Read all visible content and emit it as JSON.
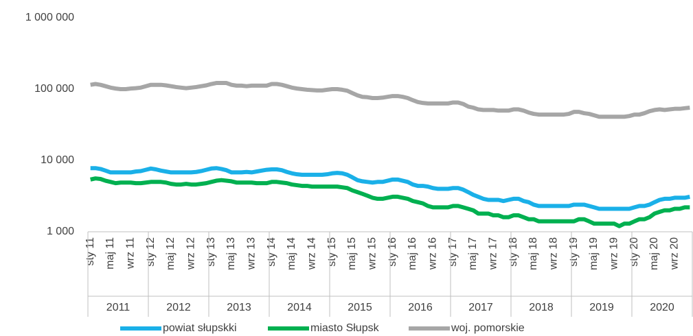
{
  "chart_data": {
    "type": "line",
    "log_scale": true,
    "grid": false,
    "legend": "bottom",
    "ylim": [
      1000,
      1000000
    ],
    "yticks": [
      {
        "value": 1000,
        "label": "1 000"
      },
      {
        "value": 10000,
        "label": "10 000"
      },
      {
        "value": 100000,
        "label": "100 000"
      },
      {
        "value": 1000000,
        "label": "1 000 000"
      }
    ],
    "groups": [
      "2011",
      "2012",
      "2013",
      "2014",
      "2015",
      "2016",
      "2017",
      "2018",
      "2019",
      "2020"
    ],
    "categories": [
      "sty 11",
      null,
      null,
      null,
      "maj 11",
      null,
      null,
      null,
      "wrz 11",
      null,
      null,
      null,
      "sty 12",
      null,
      null,
      null,
      "maj 12",
      null,
      null,
      null,
      "wrz 12",
      null,
      null,
      null,
      "sty 13",
      null,
      null,
      null,
      "maj 13",
      null,
      null,
      null,
      "wrz 13",
      null,
      null,
      null,
      "sty 14",
      null,
      null,
      null,
      "maj 14",
      null,
      null,
      null,
      "wrz 14",
      null,
      null,
      null,
      "sty 15",
      null,
      null,
      null,
      "maj 15",
      null,
      null,
      null,
      "wrz 15",
      null,
      null,
      null,
      "sty 16",
      null,
      null,
      null,
      "maj 16",
      null,
      null,
      null,
      "wrz 16",
      null,
      null,
      null,
      "sty 17",
      null,
      null,
      null,
      "maj 17",
      null,
      null,
      null,
      "wrz 17",
      null,
      null,
      null,
      "sty 18",
      null,
      null,
      null,
      "maj 18",
      null,
      null,
      null,
      "wrz 18",
      null,
      null,
      null,
      "sty 19",
      null,
      null,
      null,
      "maj 19",
      null,
      null,
      null,
      "wrz 19",
      null,
      null,
      null,
      "sty 20",
      null,
      null,
      null,
      "maj 20",
      null,
      null,
      null,
      "wrz 20",
      null,
      null,
      null
    ],
    "series": [
      {
        "name": "powiat słupskki",
        "color": "#1ab0e8",
        "values": [
          7800,
          7800,
          7600,
          7200,
          6800,
          6800,
          6800,
          6800,
          6800,
          7000,
          7100,
          7400,
          7700,
          7500,
          7200,
          7000,
          6800,
          6800,
          6800,
          6800,
          6800,
          6900,
          7100,
          7400,
          7700,
          7800,
          7600,
          7300,
          6800,
          6800,
          6800,
          6900,
          6800,
          7000,
          7200,
          7400,
          7500,
          7500,
          7300,
          6900,
          6600,
          6400,
          6300,
          6300,
          6300,
          6300,
          6300,
          6400,
          6600,
          6700,
          6600,
          6300,
          5800,
          5300,
          5100,
          5000,
          4900,
          5000,
          5000,
          5200,
          5400,
          5400,
          5200,
          5000,
          4600,
          4400,
          4400,
          4300,
          4100,
          4000,
          4000,
          4000,
          4100,
          4100,
          3900,
          3600,
          3300,
          3100,
          2900,
          2800,
          2800,
          2800,
          2700,
          2800,
          2900,
          2900,
          2700,
          2600,
          2400,
          2300,
          2300,
          2300,
          2300,
          2300,
          2300,
          2300,
          2400,
          2400,
          2400,
          2300,
          2200,
          2100,
          2100,
          2100,
          2100,
          2100,
          2100,
          2100,
          2200,
          2300,
          2300,
          2400,
          2600,
          2800,
          2900,
          2900,
          3000,
          3000,
          3000,
          3100
        ]
      },
      {
        "name": "miasto Słupsk",
        "color": "#00b050",
        "values": [
          5400,
          5600,
          5500,
          5200,
          5000,
          4800,
          4900,
          4900,
          4900,
          4800,
          4800,
          4900,
          5000,
          5000,
          5000,
          4900,
          4700,
          4600,
          4600,
          4700,
          4600,
          4600,
          4700,
          4800,
          5000,
          5200,
          5300,
          5200,
          5100,
          4900,
          4900,
          4900,
          4900,
          4800,
          4800,
          4800,
          5000,
          5000,
          4900,
          4800,
          4600,
          4500,
          4400,
          4400,
          4300,
          4300,
          4300,
          4300,
          4300,
          4300,
          4200,
          4100,
          3800,
          3600,
          3400,
          3200,
          3000,
          2900,
          2900,
          3000,
          3100,
          3100,
          3000,
          2900,
          2700,
          2600,
          2500,
          2300,
          2200,
          2200,
          2200,
          2200,
          2300,
          2300,
          2200,
          2100,
          2000,
          1800,
          1800,
          1800,
          1700,
          1700,
          1600,
          1600,
          1700,
          1700,
          1600,
          1500,
          1500,
          1400,
          1400,
          1400,
          1400,
          1400,
          1400,
          1400,
          1400,
          1500,
          1500,
          1400,
          1300,
          1300,
          1300,
          1300,
          1300,
          1200,
          1300,
          1300,
          1400,
          1500,
          1500,
          1600,
          1800,
          1900,
          2000,
          2000,
          2100,
          2100,
          2200,
          2200
        ]
      },
      {
        "name": "woj. pomorskie",
        "color": "#a6a6a6",
        "values": [
          115000,
          118000,
          115000,
          110000,
          105000,
          102000,
          100000,
          100000,
          102000,
          103000,
          105000,
          110000,
          115000,
          115000,
          115000,
          113000,
          110000,
          107000,
          105000,
          103000,
          105000,
          107000,
          110000,
          113000,
          118000,
          122000,
          122000,
          122000,
          115000,
          112000,
          112000,
          110000,
          112000,
          112000,
          112000,
          112000,
          118000,
          118000,
          115000,
          110000,
          105000,
          102000,
          100000,
          98000,
          97000,
          96000,
          96000,
          98000,
          100000,
          100000,
          98000,
          95000,
          88000,
          82000,
          78000,
          77000,
          75000,
          75000,
          76000,
          78000,
          80000,
          80000,
          78000,
          75000,
          70000,
          66000,
          64000,
          63000,
          63000,
          63000,
          63000,
          63000,
          65000,
          65000,
          62000,
          57000,
          55000,
          52000,
          51000,
          51000,
          51000,
          50000,
          50000,
          50000,
          52000,
          52000,
          50000,
          47000,
          45000,
          44000,
          44000,
          44000,
          44000,
          44000,
          44000,
          45000,
          48000,
          48000,
          46000,
          45000,
          43000,
          41000,
          41000,
          41000,
          41000,
          41000,
          41000,
          42000,
          44000,
          44000,
          46000,
          49000,
          51000,
          52000,
          51000,
          52000,
          53000,
          53000,
          54000,
          55000
        ]
      }
    ]
  }
}
